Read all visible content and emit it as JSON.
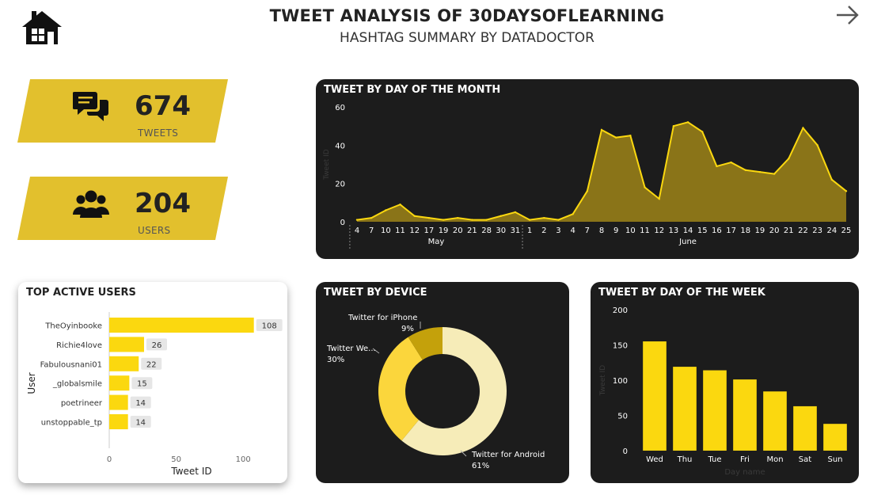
{
  "header": {
    "title": "TWEET ANALYSIS OF 30DAYSOFLEARNING",
    "subtitle": "HASHTAG SUMMARY BY DATADOCTOR",
    "home_icon": "home-icon",
    "next_icon": "arrow-right-icon"
  },
  "kpis": [
    {
      "value": "674",
      "label": "TWEETS",
      "icon": "chat-bubbles-icon"
    },
    {
      "value": "204",
      "label": "USERS",
      "icon": "users-group-icon"
    }
  ],
  "colors": {
    "accent": "#e2c02d",
    "chart_yellow": "#fbd80f",
    "dark_bg": "#1c1c1c",
    "area_fill": "#8a7418"
  },
  "chart_data": [
    {
      "type": "area",
      "title": "TWEET BY DAY OF THE MONTH",
      "ylabel": "Tweet ID",
      "ylim": [
        0,
        60
      ],
      "yticks": [
        0,
        20,
        40,
        60
      ],
      "x": [
        "4",
        "7",
        "10",
        "11",
        "12",
        "17",
        "19",
        "20",
        "21",
        "28",
        "30",
        "31",
        "1",
        "2",
        "3",
        "4",
        "7",
        "8",
        "9",
        "10",
        "11",
        "12",
        "13",
        "14",
        "15",
        "16",
        "17",
        "18",
        "19",
        "20",
        "21",
        "22",
        "23",
        "24",
        "25"
      ],
      "x_tick_labels": [
        "4",
        "7",
        "10",
        "11",
        "12",
        "17",
        "19",
        "20",
        "21",
        "28",
        "30",
        "31",
        "1",
        "2",
        "3",
        "4",
        "7",
        "8",
        "9",
        "10",
        "11",
        "12",
        "13",
        "14",
        "15",
        "16",
        "17",
        "18",
        "19",
        "20",
        "21",
        "22",
        "23",
        "24",
        "25"
      ],
      "month_groups": [
        {
          "label": "May",
          "count": 12
        },
        {
          "label": "June",
          "count": 23
        }
      ],
      "values": [
        1,
        2,
        6,
        9,
        3,
        2,
        1,
        2,
        1,
        1,
        3,
        5,
        1,
        2,
        1,
        4,
        16,
        48,
        44,
        45,
        18,
        12,
        50,
        52,
        47,
        29,
        31,
        27,
        26,
        25,
        33,
        49,
        40,
        22,
        16
      ]
    },
    {
      "type": "bar",
      "orientation": "horizontal",
      "title": "TOP ACTIVE USERS",
      "xlabel": "Tweet ID",
      "ylabel": "User",
      "xlim": [
        0,
        120
      ],
      "xticks": [
        0,
        50,
        100
      ],
      "categories": [
        "TheOyinbooke",
        "Richie4love",
        "Fabulousnani01",
        "_globalsmile",
        "poetrineer",
        "unstoppable_tp"
      ],
      "values": [
        108,
        26,
        22,
        15,
        14,
        14
      ]
    },
    {
      "type": "pie",
      "title": "TWEET BY DEVICE",
      "slices": [
        {
          "name": "Twitter for Android",
          "label": "Twitter for Android",
          "pct_label": "61%",
          "value": 61,
          "color": "#f6ecb8"
        },
        {
          "name": "Twitter Web App",
          "label": "Twitter We...",
          "pct_label": "30%",
          "value": 30,
          "color": "#fbd63c"
        },
        {
          "name": "Twitter for iPhone",
          "label": "Twitter for iPhone",
          "pct_label": "9%",
          "value": 9,
          "color": "#c4a10b"
        }
      ]
    },
    {
      "type": "bar",
      "title": "TWEET BY DAY OF THE WEEK",
      "xlabel": "Day name",
      "ylabel": "Tweet ID",
      "ylim": [
        0,
        200
      ],
      "yticks": [
        0,
        50,
        100,
        150,
        200
      ],
      "categories": [
        "Wed",
        "Thu",
        "Tue",
        "Fri",
        "Mon",
        "Sat",
        "Sun"
      ],
      "values": [
        155,
        119,
        114,
        101,
        84,
        63,
        38
      ]
    }
  ]
}
